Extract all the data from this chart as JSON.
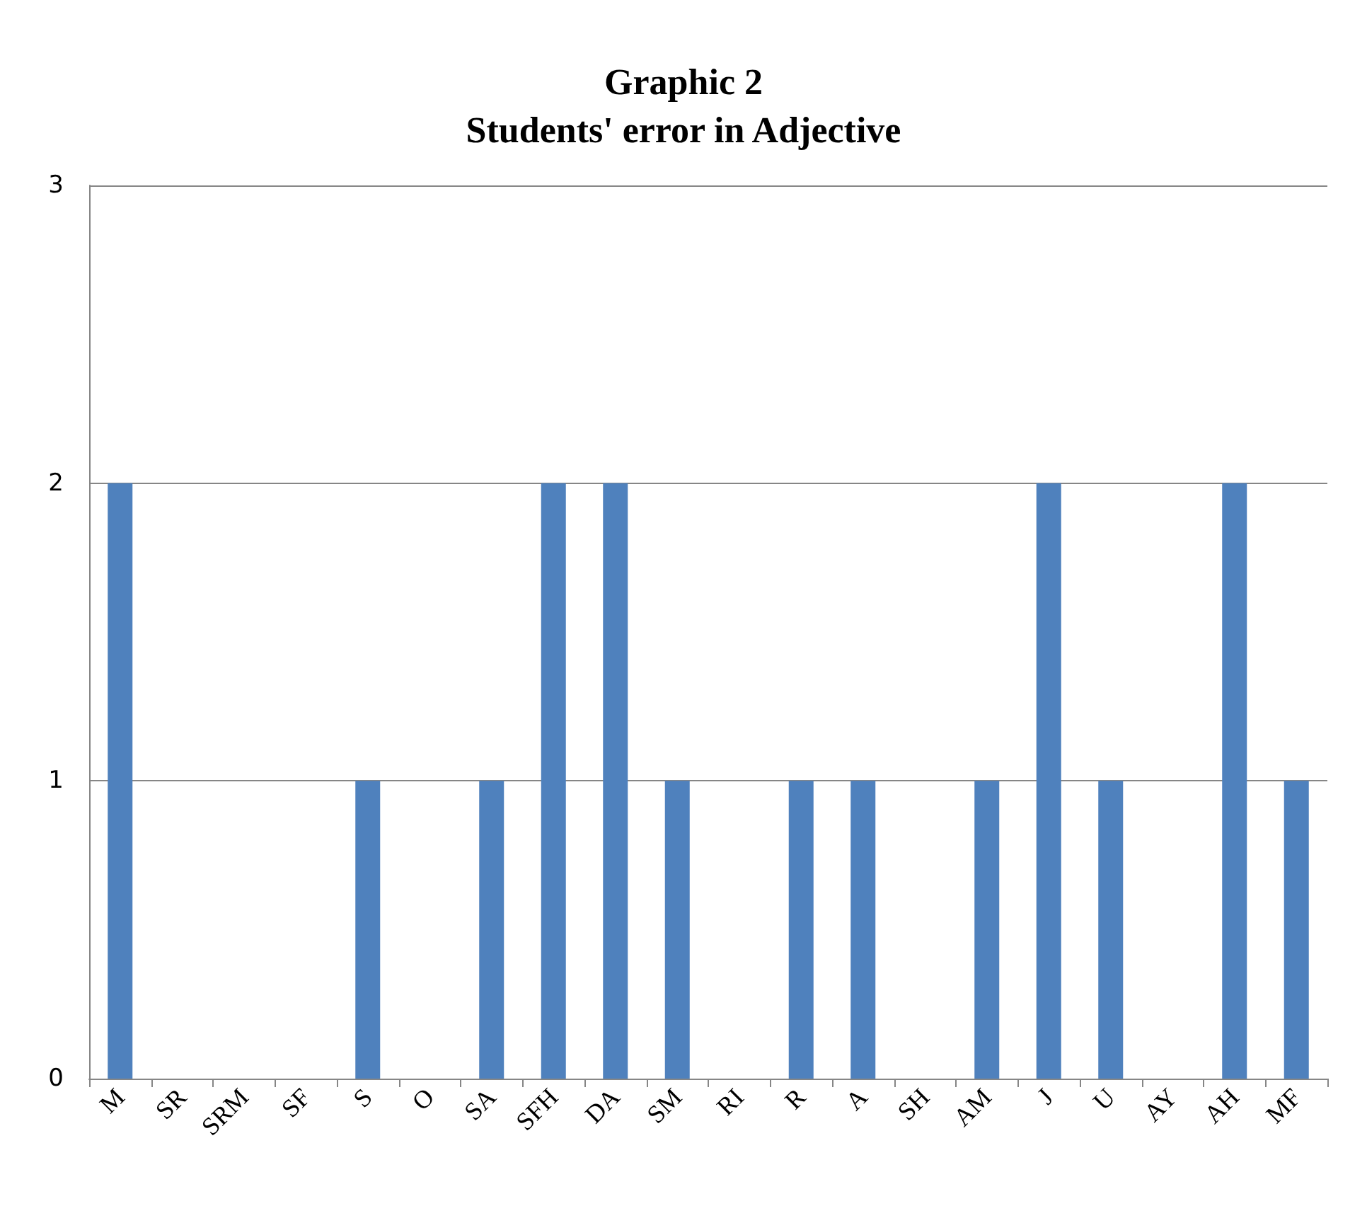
{
  "chart_data": {
    "type": "bar",
    "title": "Graphic 2\nStudents' error in Adjective",
    "categories": [
      "M",
      "SR",
      "SRM",
      "SF",
      "S",
      "O",
      "SA",
      "SFH",
      "DA",
      "SM",
      "RI",
      "R",
      "A",
      "SH",
      "AM",
      "J",
      "U",
      "AY",
      "AH",
      "MF"
    ],
    "values": [
      2,
      0,
      0,
      0,
      1,
      0,
      1,
      2,
      2,
      1,
      0,
      1,
      1,
      0,
      1,
      2,
      1,
      0,
      2,
      1
    ],
    "color": "#4f81bd",
    "ylim": [
      0,
      3
    ],
    "yticks": [
      0,
      1,
      2,
      3
    ],
    "grid": "y"
  }
}
